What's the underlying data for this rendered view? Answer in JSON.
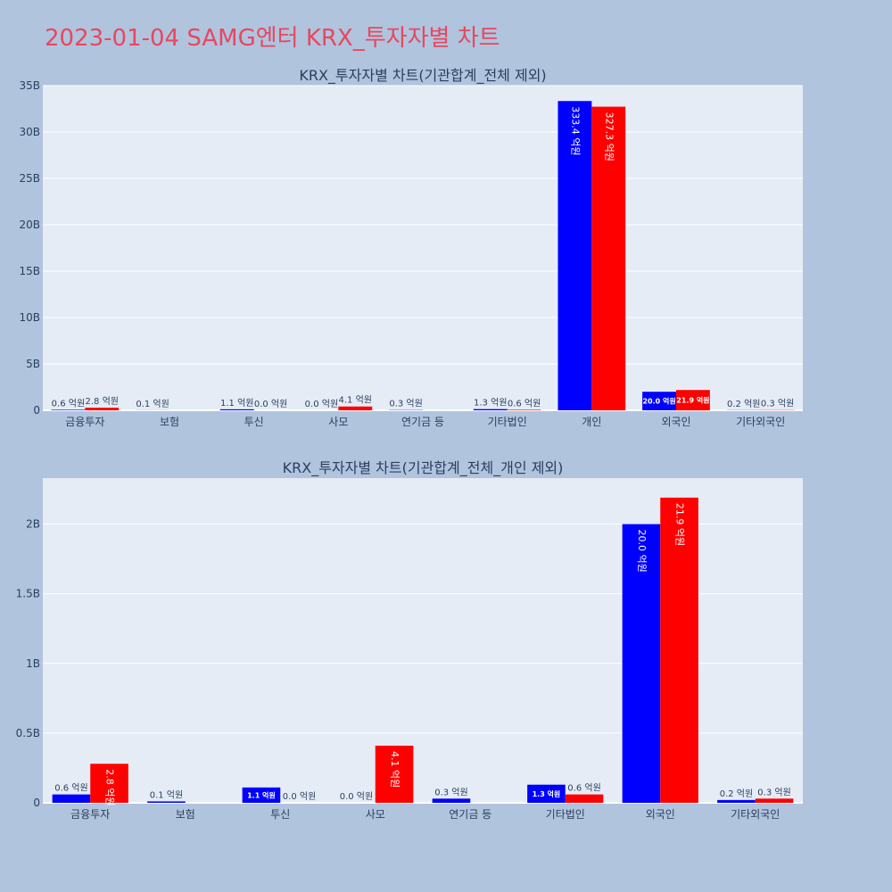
{
  "page": {
    "title": "2023-01-04 SAMG엔터 KRX_투자자별 차트"
  },
  "colors": {
    "background": "#b0c4de",
    "plot_bg": "#e5ecf6",
    "title": "#e8475f",
    "series1": "#0000ff",
    "series2": "#ff0000"
  },
  "chart_data": [
    {
      "type": "bar",
      "title": "KRX_투자자별 차트(기관합계_전체 제외)",
      "categories": [
        "금융투자",
        "보험",
        "투신",
        "사모",
        "연기금 등",
        "기타법인",
        "개인",
        "외국인",
        "기타외국인"
      ],
      "series": [
        {
          "values": [
            60000000,
            10000000,
            110000000,
            0,
            30000000,
            130000000,
            33340000000,
            2000000000,
            20000000
          ],
          "labels": [
            "0.6 억원",
            "0.1 억원",
            "1.1 억원",
            "0.0 억원",
            "0.3 억원",
            "1.3 억원",
            "333.4 억원",
            "20.0 억원",
            "0.2 억원"
          ],
          "color": "#0000ff"
        },
        {
          "values": [
            280000000,
            0,
            0,
            410000000,
            0,
            60000000,
            32730000000,
            2190000000,
            30000000
          ],
          "labels": [
            "2.8 억원",
            "",
            "0.0 억원",
            "4.1 억원",
            "",
            "0.6 억원",
            "327.3 억원",
            "21.9 억원",
            "0.3 억원"
          ],
          "color": "#ff0000"
        }
      ],
      "yticks": [
        0,
        5000000000,
        10000000000,
        15000000000,
        20000000000,
        25000000000,
        30000000000,
        35000000000
      ],
      "ytick_labels": [
        "0",
        "5B",
        "10B",
        "15B",
        "20B",
        "25B",
        "30B",
        "35B"
      ],
      "ylim": [
        0,
        35000000000
      ],
      "grid": true
    },
    {
      "type": "bar",
      "title": "KRX_투자자별 차트(기관합계_전체_개인 제외)",
      "categories": [
        "금융투자",
        "보험",
        "투신",
        "사모",
        "연기금 등",
        "기타법인",
        "외국인",
        "기타외국인"
      ],
      "series": [
        {
          "values": [
            60000000,
            10000000,
            110000000,
            0,
            30000000,
            130000000,
            2000000000,
            20000000
          ],
          "labels": [
            "0.6 억원",
            "0.1 억원",
            "1.1 억원",
            "0.0 억원",
            "0.3 억원",
            "1.3 억원",
            "20.0 억원",
            "0.2 억원"
          ],
          "color": "#0000ff"
        },
        {
          "values": [
            280000000,
            0,
            0,
            410000000,
            0,
            60000000,
            2190000000,
            30000000
          ],
          "labels": [
            "2.8 억원",
            "",
            "0.0 억원",
            "4.1 억원",
            "",
            "0.6 억원",
            "21.9 억원",
            "0.3 억원"
          ],
          "color": "#ff0000"
        }
      ],
      "yticks": [
        0,
        500000000,
        1000000000,
        1500000000,
        2000000000
      ],
      "ytick_labels": [
        "0",
        "0.5B",
        "1B",
        "1.5B",
        "2B"
      ],
      "ylim": [
        0,
        2330000000
      ],
      "grid": true
    }
  ]
}
